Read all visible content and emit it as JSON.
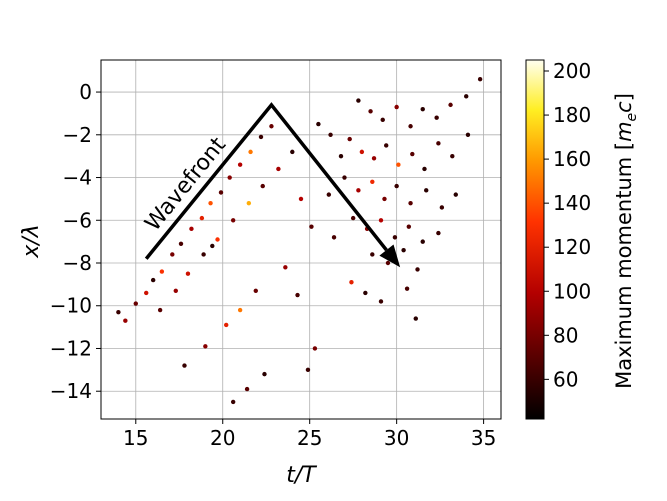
{
  "chart_data": {
    "type": "scatter",
    "title": "",
    "xlabel": "t/T",
    "ylabel": "x/λ",
    "xlim": [
      13,
      36
    ],
    "ylim": [
      -15.3,
      1.5
    ],
    "xticks": [
      15,
      20,
      25,
      30,
      35
    ],
    "yticks": [
      0,
      -2,
      -4,
      -6,
      -8,
      -10,
      -12,
      -14
    ],
    "xtick_labels": [
      "15",
      "20",
      "25",
      "30",
      "35"
    ],
    "ytick_labels": [
      "0",
      "−2",
      "−4",
      "−6",
      "−8",
      "−10",
      "−12",
      "−14"
    ],
    "grid": true,
    "colormap": "afmhot (black → red → orange → yellow → white)",
    "colorbar": {
      "label": "Maximum momentum [m_e c]",
      "label_main": "Maximum momentum [",
      "label_symbol": "m",
      "label_subscript": "e",
      "label_symbol2": "c",
      "label_close": "]",
      "range": [
        42,
        205
      ],
      "ticks": [
        60,
        80,
        100,
        120,
        140,
        160,
        180,
        200
      ],
      "tick_labels": [
        "60",
        "80",
        "100",
        "120",
        "140",
        "160",
        "180",
        "200"
      ]
    },
    "annotation": {
      "text": "Wavefront",
      "arrow_path": [
        [
          15.6,
          -7.8
        ],
        [
          22.8,
          -0.6
        ],
        [
          30.2,
          -8.2
        ]
      ]
    },
    "series": [
      {
        "values": [
          {
            "x": 14.0,
            "y": -10.3,
            "c": 60
          },
          {
            "x": 14.4,
            "y": -10.7,
            "c": 90
          },
          {
            "x": 15.0,
            "y": -9.9,
            "c": 75
          },
          {
            "x": 15.6,
            "y": -9.4,
            "c": 110
          },
          {
            "x": 16.0,
            "y": -8.8,
            "c": 55
          },
          {
            "x": 16.5,
            "y": -8.4,
            "c": 130
          },
          {
            "x": 17.1,
            "y": -7.6,
            "c": 80
          },
          {
            "x": 17.6,
            "y": -7.1,
            "c": 65
          },
          {
            "x": 18.2,
            "y": -6.4,
            "c": 95
          },
          {
            "x": 18.8,
            "y": -5.9,
            "c": 120
          },
          {
            "x": 19.3,
            "y": -5.2,
            "c": 140
          },
          {
            "x": 19.9,
            "y": -4.7,
            "c": 70
          },
          {
            "x": 20.4,
            "y": -4.0,
            "c": 85
          },
          {
            "x": 21.0,
            "y": -3.4,
            "c": 100
          },
          {
            "x": 21.6,
            "y": -2.8,
            "c": 150
          },
          {
            "x": 22.2,
            "y": -2.1,
            "c": 60
          },
          {
            "x": 22.8,
            "y": -1.6,
            "c": 75
          },
          {
            "x": 16.4,
            "y": -10.2,
            "c": 70
          },
          {
            "x": 17.3,
            "y": -9.3,
            "c": 90
          },
          {
            "x": 18.0,
            "y": -8.5,
            "c": 110
          },
          {
            "x": 18.9,
            "y": -7.6,
            "c": 60
          },
          {
            "x": 19.7,
            "y": -6.9,
            "c": 130
          },
          {
            "x": 20.6,
            "y": -6.0,
            "c": 80
          },
          {
            "x": 21.5,
            "y": -5.2,
            "c": 165
          },
          {
            "x": 22.3,
            "y": -4.4,
            "c": 70
          },
          {
            "x": 23.2,
            "y": -3.6,
            "c": 95
          },
          {
            "x": 24.0,
            "y": -2.8,
            "c": 55
          },
          {
            "x": 17.8,
            "y": -12.8,
            "c": 60
          },
          {
            "x": 19.0,
            "y": -11.9,
            "c": 85
          },
          {
            "x": 20.2,
            "y": -10.9,
            "c": 120
          },
          {
            "x": 21.0,
            "y": -10.2,
            "c": 150
          },
          {
            "x": 21.9,
            "y": -9.3,
            "c": 75
          },
          {
            "x": 20.6,
            "y": -14.5,
            "c": 60
          },
          {
            "x": 21.4,
            "y": -13.9,
            "c": 70
          },
          {
            "x": 22.4,
            "y": -13.2,
            "c": 55
          },
          {
            "x": 24.9,
            "y": -13.0,
            "c": 60
          },
          {
            "x": 25.3,
            "y": -12.0,
            "c": 80
          },
          {
            "x": 24.3,
            "y": -9.5,
            "c": 65
          },
          {
            "x": 23.6,
            "y": -8.2,
            "c": 90
          },
          {
            "x": 25.1,
            "y": -6.3,
            "c": 70
          },
          {
            "x": 24.5,
            "y": -5.0,
            "c": 100
          },
          {
            "x": 26.1,
            "y": -4.8,
            "c": 60
          },
          {
            "x": 27.8,
            "y": -0.4,
            "c": 55
          },
          {
            "x": 28.5,
            "y": -0.9,
            "c": 70
          },
          {
            "x": 29.2,
            "y": -1.3,
            "c": 60
          },
          {
            "x": 30.0,
            "y": -0.7,
            "c": 85
          },
          {
            "x": 30.8,
            "y": -1.6,
            "c": 65
          },
          {
            "x": 31.5,
            "y": -0.8,
            "c": 55
          },
          {
            "x": 32.3,
            "y": -1.2,
            "c": 60
          },
          {
            "x": 33.1,
            "y": -0.6,
            "c": 70
          },
          {
            "x": 34.0,
            "y": -0.2,
            "c": 55
          },
          {
            "x": 34.8,
            "y": 0.6,
            "c": 60
          },
          {
            "x": 27.3,
            "y": -2.2,
            "c": 75
          },
          {
            "x": 28.0,
            "y": -2.8,
            "c": 110
          },
          {
            "x": 28.7,
            "y": -3.1,
            "c": 90
          },
          {
            "x": 29.4,
            "y": -2.5,
            "c": 60
          },
          {
            "x": 30.1,
            "y": -3.4,
            "c": 140
          },
          {
            "x": 30.9,
            "y": -2.9,
            "c": 70
          },
          {
            "x": 31.6,
            "y": -3.6,
            "c": 55
          },
          {
            "x": 32.4,
            "y": -2.4,
            "c": 65
          },
          {
            "x": 33.2,
            "y": -3.0,
            "c": 60
          },
          {
            "x": 34.1,
            "y": -2.0,
            "c": 55
          },
          {
            "x": 27.0,
            "y": -4.0,
            "c": 60
          },
          {
            "x": 27.8,
            "y": -4.6,
            "c": 95
          },
          {
            "x": 28.6,
            "y": -4.2,
            "c": 125
          },
          {
            "x": 29.3,
            "y": -5.0,
            "c": 80
          },
          {
            "x": 30.0,
            "y": -4.4,
            "c": 60
          },
          {
            "x": 30.8,
            "y": -5.2,
            "c": 70
          },
          {
            "x": 31.7,
            "y": -4.6,
            "c": 55
          },
          {
            "x": 32.6,
            "y": -5.4,
            "c": 60
          },
          {
            "x": 33.4,
            "y": -4.8,
            "c": 55
          },
          {
            "x": 27.5,
            "y": -5.9,
            "c": 65
          },
          {
            "x": 28.3,
            "y": -6.4,
            "c": 85
          },
          {
            "x": 29.1,
            "y": -6.0,
            "c": 100
          },
          {
            "x": 29.9,
            "y": -6.8,
            "c": 60
          },
          {
            "x": 30.7,
            "y": -6.3,
            "c": 70
          },
          {
            "x": 31.5,
            "y": -7.0,
            "c": 55
          },
          {
            "x": 32.4,
            "y": -6.6,
            "c": 60
          },
          {
            "x": 28.6,
            "y": -7.6,
            "c": 60
          },
          {
            "x": 29.5,
            "y": -8.0,
            "c": 70
          },
          {
            "x": 30.4,
            "y": -7.4,
            "c": 55
          },
          {
            "x": 31.2,
            "y": -8.3,
            "c": 60
          },
          {
            "x": 28.2,
            "y": -9.4,
            "c": 55
          },
          {
            "x": 29.1,
            "y": -9.8,
            "c": 60
          },
          {
            "x": 30.6,
            "y": -9.2,
            "c": 65
          },
          {
            "x": 31.1,
            "y": -10.6,
            "c": 55
          },
          {
            "x": 26.8,
            "y": -3.0,
            "c": 55
          },
          {
            "x": 26.2,
            "y": -2.0,
            "c": 60
          },
          {
            "x": 25.5,
            "y": -1.5,
            "c": 55
          },
          {
            "x": 26.4,
            "y": -6.8,
            "c": 65
          },
          {
            "x": 27.4,
            "y": -8.9,
            "c": 120
          },
          {
            "x": 19.4,
            "y": -7.2,
            "c": 55
          }
        ]
      }
    ]
  }
}
